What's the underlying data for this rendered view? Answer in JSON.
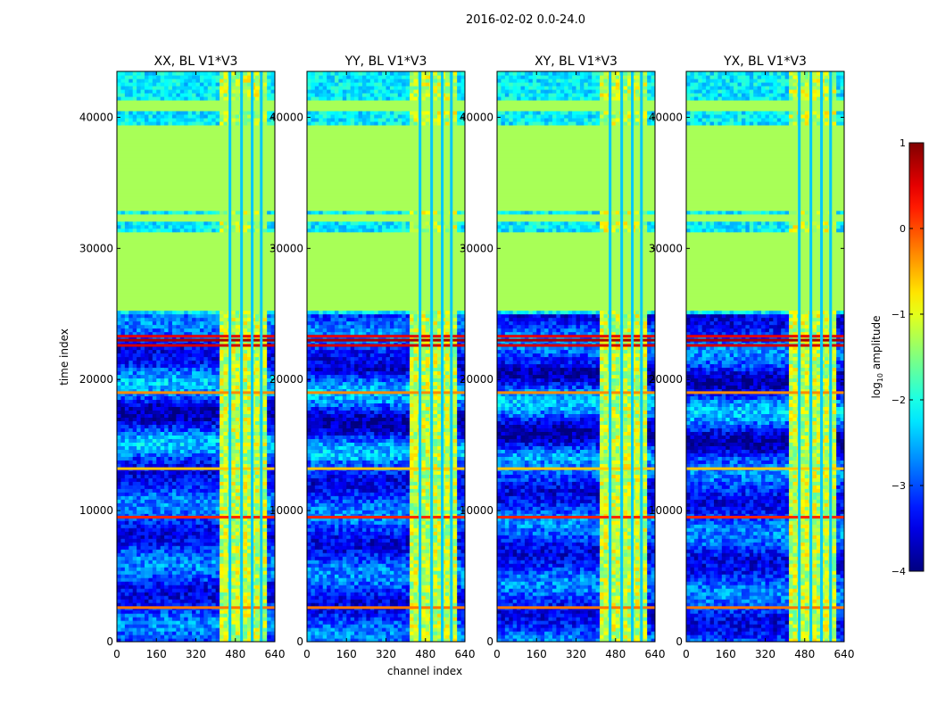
{
  "figure_title": "2016-02-02 0.0-24.0",
  "chart_data": {
    "type": "heatmap",
    "title": "2016-02-02 0.0-24.0",
    "xlabel": "channel index",
    "ylabel": "time index",
    "xlim": [
      0,
      640
    ],
    "ylim": [
      0,
      43500
    ],
    "x_ticks": [
      "0",
      "160",
      "320",
      "480",
      "640"
    ],
    "x_tick_values": [
      0,
      160,
      320,
      480,
      640
    ],
    "y_ticks": [
      "0",
      "10000",
      "20000",
      "30000",
      "40000"
    ],
    "y_tick_values": [
      0,
      10000,
      20000,
      30000,
      40000
    ],
    "panels": [
      {
        "title": "XX, BL V1*V3",
        "polarization": "XX"
      },
      {
        "title": "YY, BL V1*V3",
        "polarization": "YY"
      },
      {
        "title": "XY, BL V1*V3",
        "polarization": "XY"
      },
      {
        "title": "YX, BL V1*V3",
        "polarization": "YX"
      }
    ],
    "colorbar": {
      "label": "log10 amplitude",
      "label_main": "log",
      "label_sub": "10",
      "label_rest": " amplitude",
      "range": [
        -4,
        1
      ],
      "ticks": [
        "1",
        "0",
        "−1",
        "−2",
        "−3",
        "−4"
      ],
      "tick_values": [
        1,
        0,
        -1,
        -2,
        -3,
        -4
      ],
      "colormap": "jet"
    },
    "flagged_time_ranges": [
      [
        25300,
        31300
      ],
      [
        32000,
        32700
      ],
      [
        33000,
        39500
      ],
      [
        40600,
        41300
      ]
    ],
    "flag_value": -1.3,
    "high_amplitude_channel_range": [
      410,
      600
    ],
    "notes": "Background values mostly between -3.5 and -2; horizontal bright lines near time index 2600, 9500, 19000, 22500-23300"
  }
}
